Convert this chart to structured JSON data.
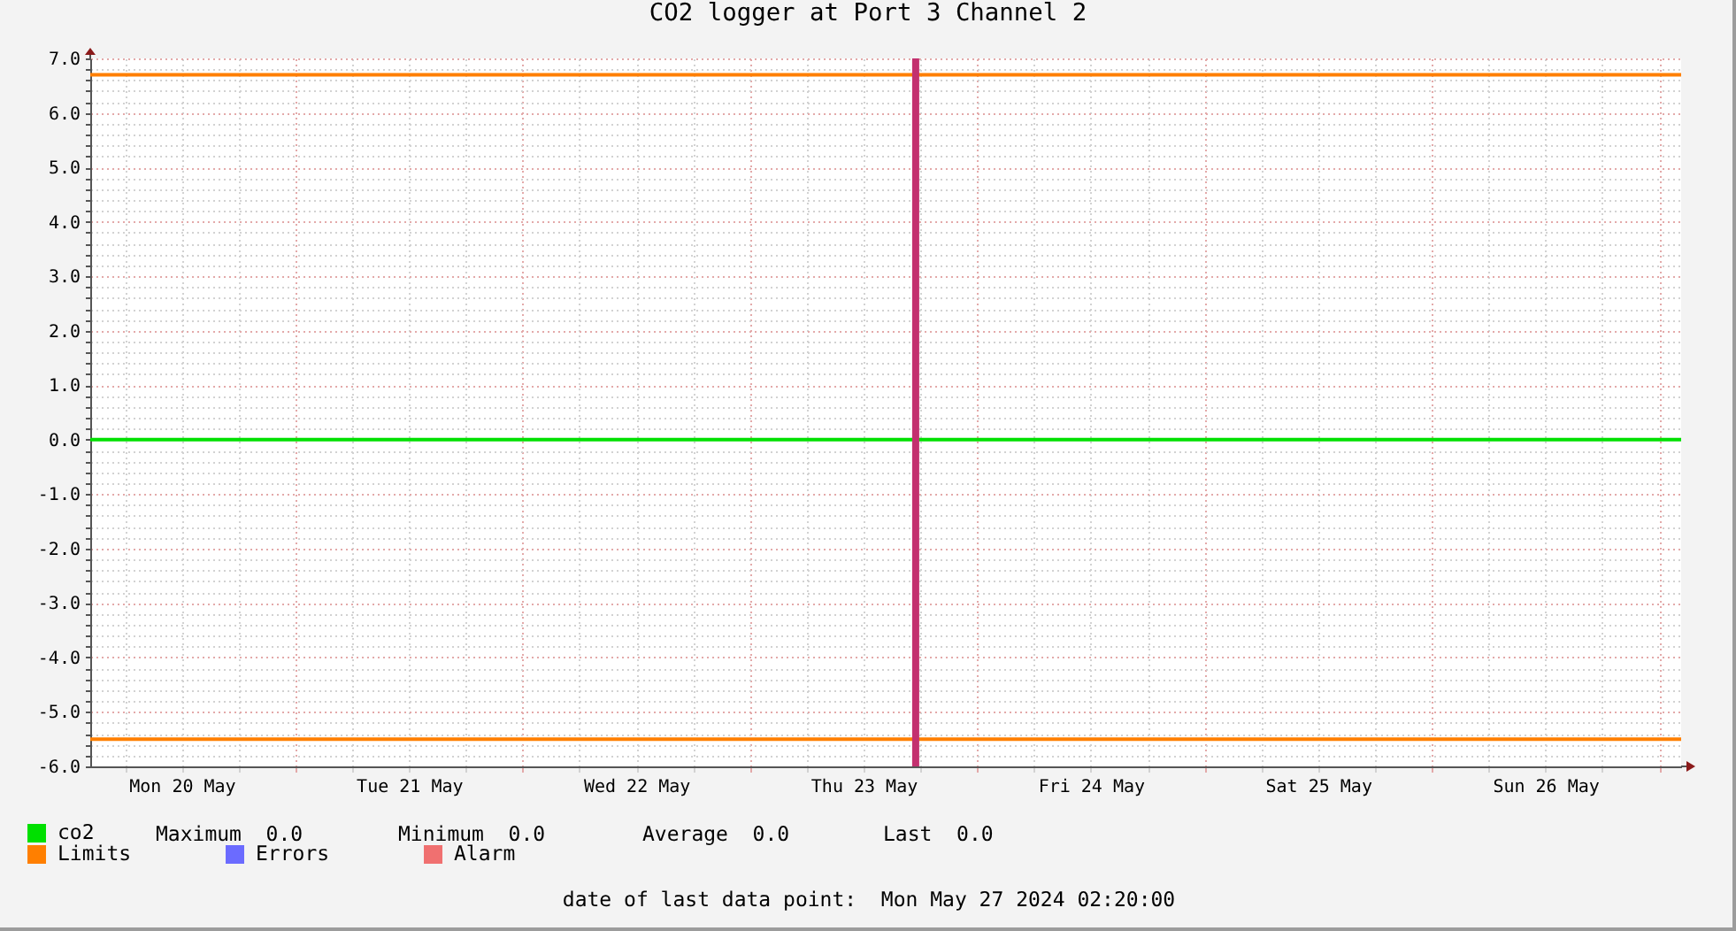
{
  "chart_data": {
    "type": "line",
    "title": "CO2 logger at Port 3 Channel 2",
    "x": [
      "2024-05-20T02:20",
      "2024-05-27T02:20"
    ],
    "series": [
      {
        "name": "co2",
        "color": "#00e000",
        "values": [
          0,
          0
        ]
      },
      {
        "name": "Limits",
        "color": "#ff7f00",
        "values": [
          6.7,
          6.7
        ]
      },
      {
        "color": "#ff7f00",
        "values": [
          -5.5,
          -5.5
        ]
      },
      {
        "name": "Errors",
        "color": "#6b6bff",
        "values": [
          null,
          null
        ]
      },
      {
        "name": "Alarm",
        "color": "#f07070",
        "values": [
          null,
          null
        ]
      }
    ],
    "xlim": [
      "2024-05-20T02:20",
      "2024-05-27T02:20"
    ],
    "xticks": [
      {
        "value": "2024-05-20T06:00",
        "label": null
      },
      {
        "value": "2024-05-20T12:00",
        "label": "Mon 20 May"
      },
      {
        "value": "2024-05-20T18:00",
        "label": null
      },
      {
        "value": "2024-05-21T00:00",
        "label": null
      },
      {
        "value": "2024-05-21T06:00",
        "label": null
      },
      {
        "value": "2024-05-21T12:00",
        "label": "Tue 21 May"
      },
      {
        "value": "2024-05-21T18:00",
        "label": null
      },
      {
        "value": "2024-05-22T00:00",
        "label": null
      },
      {
        "value": "2024-05-22T06:00",
        "label": null
      },
      {
        "value": "2024-05-22T12:00",
        "label": "Wed 22 May"
      },
      {
        "value": "2024-05-22T18:00",
        "label": null
      },
      {
        "value": "2024-05-23T00:00",
        "label": null
      },
      {
        "value": "2024-05-23T06:00",
        "label": null
      },
      {
        "value": "2024-05-23T12:00",
        "label": "Thu 23 May"
      },
      {
        "value": "2024-05-23T18:00",
        "label": null
      },
      {
        "value": "2024-05-24T00:00",
        "label": null
      },
      {
        "value": "2024-05-24T06:00",
        "label": null
      },
      {
        "value": "2024-05-24T12:00",
        "label": "Fri 24 May"
      },
      {
        "value": "2024-05-24T18:00",
        "label": null
      },
      {
        "value": "2024-05-25T00:00",
        "label": null
      },
      {
        "value": "2024-05-25T06:00",
        "label": null
      },
      {
        "value": "2024-05-25T12:00",
        "label": "Sat 25 May"
      },
      {
        "value": "2024-05-25T18:00",
        "label": null
      },
      {
        "value": "2024-05-26T00:00",
        "label": null
      },
      {
        "value": "2024-05-26T06:00",
        "label": null
      },
      {
        "value": "2024-05-26T12:00",
        "label": "Sun 26 May"
      },
      {
        "value": "2024-05-26T18:00",
        "label": null
      },
      {
        "value": "2024-05-27T00:00",
        "label": null
      }
    ],
    "ylim": [
      -6,
      7
    ],
    "yticks": [
      {
        "value": -6,
        "label": "-6.0"
      },
      {
        "value": -5.8,
        "label": null
      },
      {
        "value": -5.6,
        "label": null
      },
      {
        "value": -5.4,
        "label": null
      },
      {
        "value": -5.2,
        "label": null
      },
      {
        "value": -5,
        "label": "-5.0"
      },
      {
        "value": -4.8,
        "label": null
      },
      {
        "value": -4.6,
        "label": null
      },
      {
        "value": -4.4,
        "label": null
      },
      {
        "value": -4.2,
        "label": null
      },
      {
        "value": -4,
        "label": "-4.0"
      },
      {
        "value": -3.8,
        "label": null
      },
      {
        "value": -3.6,
        "label": null
      },
      {
        "value": -3.4,
        "label": null
      },
      {
        "value": -3.2,
        "label": null
      },
      {
        "value": -3,
        "label": "-3.0"
      },
      {
        "value": -2.8,
        "label": null
      },
      {
        "value": -2.6,
        "label": null
      },
      {
        "value": -2.4,
        "label": null
      },
      {
        "value": -2.2,
        "label": null
      },
      {
        "value": -2,
        "label": "-2.0"
      },
      {
        "value": -1.8,
        "label": null
      },
      {
        "value": -1.6,
        "label": null
      },
      {
        "value": -1.4,
        "label": null
      },
      {
        "value": -1.2,
        "label": null
      },
      {
        "value": -1,
        "label": "-1.0"
      },
      {
        "value": -0.8,
        "label": null
      },
      {
        "value": -0.6,
        "label": null
      },
      {
        "value": -0.4,
        "label": null
      },
      {
        "value": -0.2,
        "label": null
      },
      {
        "value": 0,
        "label": "0.0"
      },
      {
        "value": 0.2,
        "label": null
      },
      {
        "value": 0.4,
        "label": null
      },
      {
        "value": 0.6,
        "label": null
      },
      {
        "value": 0.8,
        "label": null
      },
      {
        "value": 1,
        "label": "1.0"
      },
      {
        "value": 1.2,
        "label": null
      },
      {
        "value": 1.4,
        "label": null
      },
      {
        "value": 1.6,
        "label": null
      },
      {
        "value": 1.8,
        "label": null
      },
      {
        "value": 2,
        "label": "2.0"
      },
      {
        "value": 2.2,
        "label": null
      },
      {
        "value": 2.4,
        "label": null
      },
      {
        "value": 2.6,
        "label": null
      },
      {
        "value": 2.8,
        "label": null
      },
      {
        "value": 3,
        "label": "3.0"
      },
      {
        "value": 3.2,
        "label": null
      },
      {
        "value": 3.4,
        "label": null
      },
      {
        "value": 3.6,
        "label": null
      },
      {
        "value": 3.8,
        "label": null
      },
      {
        "value": 4,
        "label": "4.0"
      },
      {
        "value": 4.2,
        "label": null
      },
      {
        "value": 4.4,
        "label": null
      },
      {
        "value": 4.6,
        "label": null
      },
      {
        "value": 4.8,
        "label": null
      },
      {
        "value": 5,
        "label": "5.0"
      },
      {
        "value": 5.2,
        "label": null
      },
      {
        "value": 5.4,
        "label": null
      },
      {
        "value": 5.6,
        "label": null
      },
      {
        "value": 5.8,
        "label": null
      },
      {
        "value": 6,
        "label": "6.0"
      },
      {
        "value": 6.2,
        "label": null
      },
      {
        "value": 6.4,
        "label": null
      },
      {
        "value": 6.6,
        "label": null
      },
      {
        "value": 6.8,
        "label": null
      },
      {
        "value": 7,
        "label": "7.0"
      }
    ],
    "ref_lines": [
      {
        "axis": "x",
        "value": "2024-05-23T17:30",
        "color": "#c3306f"
      }
    ],
    "grid": true,
    "legend": "bottom left",
    "annotations": [
      "Maximum  0.0",
      "Minimum  0.0",
      "Average  0.0",
      "Last  0.0",
      "date of last data point:  Mon May 27 2024 02:20:00"
    ]
  }
}
